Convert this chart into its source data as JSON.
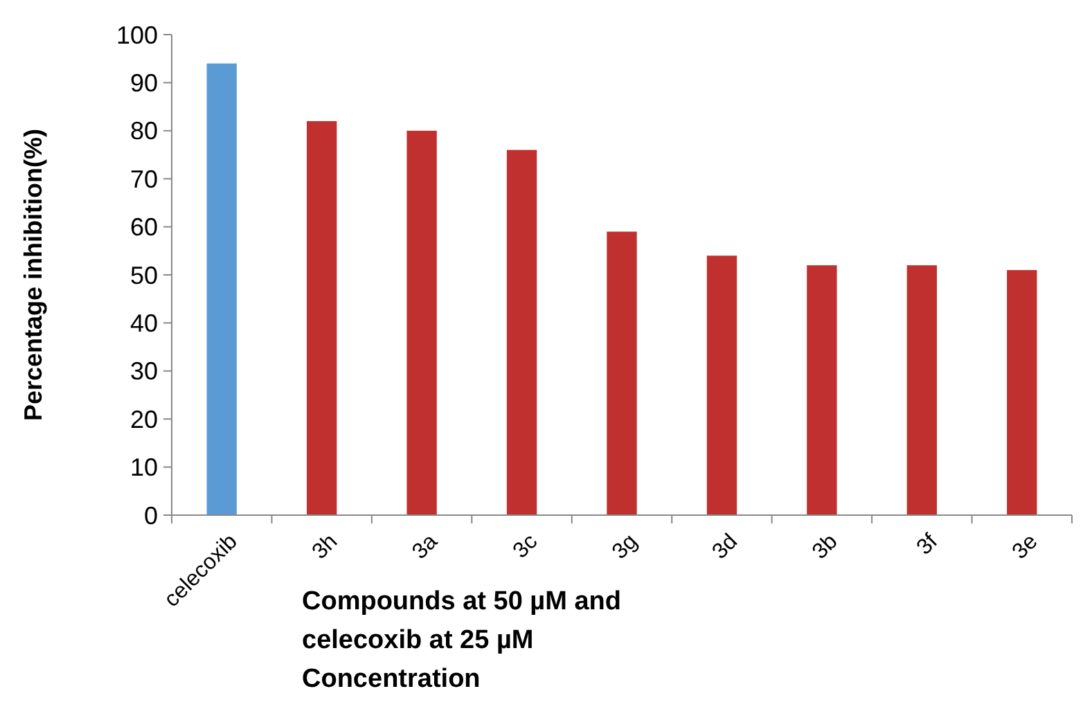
{
  "chart_data": {
    "type": "bar",
    "xlabel": "Compounds at 50 µM and celecoxib at 25 µM Concentration",
    "ylabel": "Percentage inhibition(%)",
    "categories": [
      "celecoxib",
      "3h",
      "3a",
      "3c",
      "3g",
      "3d",
      "3b",
      "3f",
      "3e"
    ],
    "values": [
      94,
      82,
      80,
      76,
      59,
      54,
      52,
      52,
      51
    ],
    "colors": [
      "#5b9bd5",
      "#c0302e",
      "#c0302e",
      "#c0302e",
      "#c0302e",
      "#c0302e",
      "#c0302e",
      "#c0302e",
      "#c0302e"
    ],
    "ylim": [
      0,
      100
    ],
    "yticks": [
      0,
      10,
      20,
      30,
      40,
      50,
      60,
      70,
      80,
      90,
      100
    ],
    "grid": false
  }
}
